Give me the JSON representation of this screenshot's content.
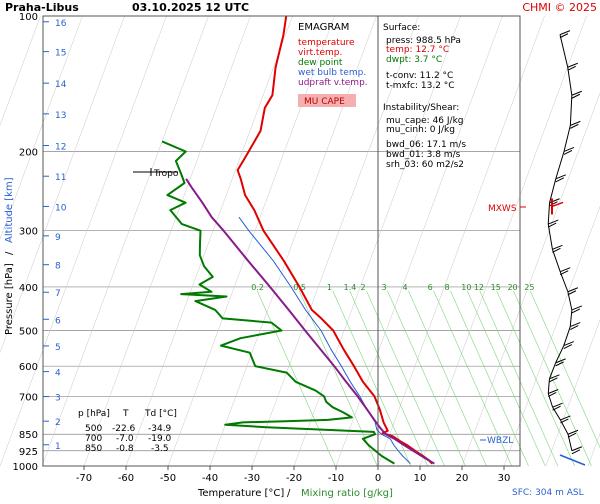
{
  "header": {
    "station": "Praha-Libus",
    "datetime": "03.10.2025 12 UTC",
    "credit": "CHMI © 2025"
  },
  "legend": {
    "title": "EMAGRAM",
    "items": [
      {
        "label": "temperature",
        "color": "#e00000"
      },
      {
        "label": "virt.temp.",
        "color": "#e00000"
      },
      {
        "label": "dew point",
        "color": "#007a00"
      },
      {
        "label": "wet bulb temp.",
        "color": "#2a5fd0"
      },
      {
        "label": "udpraft v.temp.",
        "color": "#8a1a8a"
      }
    ],
    "badge": "MU CAPE",
    "badge_color": "#f4b0b0"
  },
  "surface": {
    "title": "Surface:",
    "lines": [
      {
        "text": "press: 988.5 hPa",
        "color": "#000000"
      },
      {
        "text": "temp: 12.7 °C",
        "color": "#e00000"
      },
      {
        "text": "dwpt: 3.7 °C",
        "color": "#007a00"
      }
    ],
    "tconv": "t-conv: 11.2 °C",
    "tmxfc": "t-mxfc: 13.2 °C",
    "instability_title": "Instability/Shear:",
    "instability_lines": [
      "mu_cape: 46 J/kg",
      "mu_cinh: 0 J/kg",
      "bwd_06: 17.1 m/s",
      "bwd_01: 3.8 m/s",
      "srh_03: 60 m2/s2"
    ]
  },
  "table": {
    "headers": [
      "p [hPa]",
      "T",
      "Td [°C]"
    ],
    "rows": [
      [
        "500",
        "-22.6",
        "-34.9"
      ],
      [
        "700",
        "-7.0",
        "-19.0"
      ],
      [
        "850",
        "-0.8",
        "-3.5"
      ]
    ]
  },
  "annotations": {
    "tropo": "Tropo",
    "mxws": "MXWS",
    "wbzl": "WBZL",
    "sfc": "SFC: 304 m ASL"
  },
  "axes": {
    "xlabel_temp": "Temperature [°C]",
    "xlabel_sep": "/",
    "xlabel_mix": "Mixing ratio [g/kg]",
    "ylabel_pressure": "Pressure [hPa]",
    "ylabel_sep": "/",
    "ylabel_alt": "Altitude [km]"
  },
  "chart_data": {
    "type": "line",
    "title": "Praha-Libus 03.10.2025 12 UTC",
    "xlabel": "Temperature [°C] / Mixing ratio [g/kg]",
    "ylabel": "Pressure [hPa] / Altitude [km]",
    "xlim": [
      -80,
      40
    ],
    "ylim_pressure": [
      100,
      1000
    ],
    "x_ticks": [
      -70,
      -60,
      -50,
      -40,
      -30,
      -20,
      -10,
      0,
      10,
      20,
      30
    ],
    "pressure_ticks": [
      100,
      200,
      300,
      400,
      500,
      600,
      700,
      850,
      925,
      1000
    ],
    "pressure_gridlines": [
      200,
      300,
      400,
      500,
      600,
      700,
      850,
      925,
      1000
    ],
    "altitude_km_ticks": [
      {
        "km": 1,
        "p": 897
      },
      {
        "km": 2,
        "p": 795
      },
      {
        "km": 3,
        "p": 701
      },
      {
        "km": 4,
        "p": 617
      },
      {
        "km": 5,
        "p": 541
      },
      {
        "km": 6,
        "p": 472
      },
      {
        "km": 7,
        "p": 411
      },
      {
        "km": 8,
        "p": 357
      },
      {
        "km": 9,
        "p": 308
      },
      {
        "km": 10,
        "p": 265
      },
      {
        "km": 11,
        "p": 227
      },
      {
        "km": 12,
        "p": 194
      },
      {
        "km": 13,
        "p": 165
      },
      {
        "km": 14,
        "p": 141
      },
      {
        "km": 15,
        "p": 120
      },
      {
        "km": 16,
        "p": 103
      }
    ],
    "mixing_ratio_labels": [
      "0.2",
      "0.5",
      "1",
      "1.4",
      "2",
      "3",
      "4",
      "6",
      "8",
      "10",
      "12",
      "15",
      "20",
      "25"
    ],
    "mixing_ratio_label_p": 400,
    "mixing_ratio_label_t": [
      -45,
      -35,
      -27,
      -23,
      -19,
      -14,
      -9,
      -3,
      1,
      5,
      8,
      12,
      16,
      20
    ],
    "series": [
      {
        "name": "temperature",
        "color": "#e00000",
        "width": 2,
        "points": [
          [
            988,
            12.7
          ],
          [
            970,
            11.5
          ],
          [
            950,
            9.8
          ],
          [
            925,
            7.5
          ],
          [
            900,
            5.2
          ],
          [
            880,
            3.0
          ],
          [
            860,
            1.0
          ],
          [
            850,
            -0.8
          ],
          [
            845,
            -1.8
          ],
          [
            835,
            -0.8
          ],
          [
            820,
            -1.5
          ],
          [
            800,
            -2.5
          ],
          [
            750,
            -4.5
          ],
          [
            700,
            -7.0
          ],
          [
            650,
            -11.0
          ],
          [
            600,
            -14.5
          ],
          [
            550,
            -18.5
          ],
          [
            500,
            -22.6
          ],
          [
            470,
            -26.5
          ],
          [
            450,
            -29.5
          ],
          [
            400,
            -34.5
          ],
          [
            350,
            -40.5
          ],
          [
            300,
            -48.0
          ],
          [
            270,
            -52.0
          ],
          [
            250,
            -55.5
          ],
          [
            230,
            -58.0
          ],
          [
            220,
            -59.5
          ],
          [
            210,
            -59.0
          ],
          [
            200,
            -58.5
          ],
          [
            180,
            -57.5
          ],
          [
            160,
            -58.5
          ],
          [
            150,
            -57.8
          ],
          [
            130,
            -59.5
          ],
          [
            110,
            -60.5
          ],
          [
            100,
            -61.5
          ]
        ]
      },
      {
        "name": "wet bulb temp.",
        "color": "#2a5fd0",
        "width": 1,
        "points": [
          [
            988,
            7.5
          ],
          [
            950,
            5.0
          ],
          [
            925,
            3.5
          ],
          [
            900,
            2.0
          ],
          [
            870,
            0.5
          ],
          [
            850,
            -2.0
          ],
          [
            830,
            -3.5
          ],
          [
            800,
            -4.5
          ],
          [
            750,
            -7.5
          ],
          [
            700,
            -10.5
          ],
          [
            650,
            -14.0
          ],
          [
            600,
            -17.5
          ],
          [
            550,
            -21.5
          ],
          [
            500,
            -25.5
          ],
          [
            450,
            -31.0
          ],
          [
            400,
            -36.5
          ],
          [
            350,
            -43.0
          ],
          [
            300,
            -51.5
          ],
          [
            280,
            -55.0
          ]
        ]
      },
      {
        "name": "udpraft v.temp.",
        "color": "#8a1a8a",
        "width": 2,
        "points": [
          [
            988,
            13.2
          ],
          [
            950,
            9.5
          ],
          [
            900,
            4.5
          ],
          [
            870,
            1.5
          ],
          [
            850,
            -1.0
          ],
          [
            820,
            -3.0
          ],
          [
            800,
            -4.3
          ],
          [
            750,
            -7.5
          ],
          [
            700,
            -11.0
          ],
          [
            650,
            -15.0
          ],
          [
            600,
            -19.2
          ],
          [
            550,
            -24.0
          ],
          [
            500,
            -29.3
          ],
          [
            450,
            -35.0
          ],
          [
            400,
            -41.5
          ],
          [
            350,
            -49.0
          ],
          [
            300,
            -57.5
          ],
          [
            280,
            -61.5
          ],
          [
            260,
            -65.0
          ],
          [
            240,
            -69.0
          ],
          [
            230,
            -71.0
          ]
        ]
      },
      {
        "name": "dew point",
        "color": "#007a00",
        "width": 2,
        "points": [
          [
            988,
            3.7
          ],
          [
            950,
            0.0
          ],
          [
            900,
            -4.0
          ],
          [
            870,
            -6.0
          ],
          [
            850,
            -3.5
          ],
          [
            840,
            -4.0
          ],
          [
            820,
            -30.0
          ],
          [
            810,
            -40.0
          ],
          [
            800,
            -36.0
          ],
          [
            795,
            -26.0
          ],
          [
            790,
            -16.0
          ],
          [
            780,
            -10.5
          ],
          [
            760,
            -13.0
          ],
          [
            740,
            -16.0
          ],
          [
            720,
            -18.0
          ],
          [
            700,
            -19.0
          ],
          [
            680,
            -21.5
          ],
          [
            650,
            -27.0
          ],
          [
            620,
            -30.0
          ],
          [
            600,
            -38.0
          ],
          [
            560,
            -40.5
          ],
          [
            540,
            -48.0
          ],
          [
            520,
            -44.0
          ],
          [
            500,
            -34.9
          ],
          [
            480,
            -38.0
          ],
          [
            470,
            -50.0
          ],
          [
            450,
            -52.5
          ],
          [
            430,
            -58.0
          ],
          [
            420,
            -51.0
          ],
          [
            415,
            -62.0
          ],
          [
            410,
            -55.0
          ],
          [
            395,
            -58.5
          ],
          [
            380,
            -56.0
          ],
          [
            360,
            -59.0
          ],
          [
            340,
            -61.0
          ],
          [
            320,
            -62.0
          ],
          [
            300,
            -63.0
          ],
          [
            290,
            -68.0
          ],
          [
            270,
            -72.0
          ],
          [
            260,
            -69.0
          ],
          [
            250,
            -74.0
          ],
          [
            235,
            -71.0
          ],
          [
            225,
            -72.5
          ],
          [
            210,
            -75.0
          ],
          [
            200,
            -73.5
          ],
          [
            190,
            -80.0
          ]
        ]
      }
    ]
  }
}
